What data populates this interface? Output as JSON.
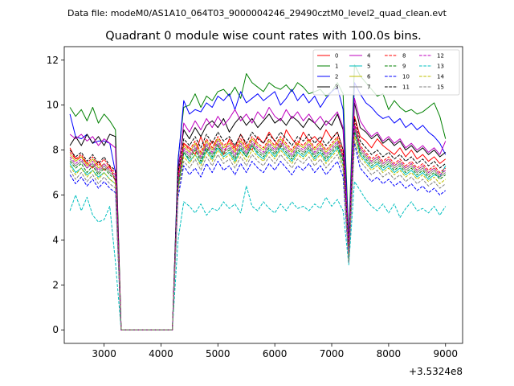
{
  "suptitle": "Data file: modeM0/AS1A10_064T03_9000004246_29490cztM0_level2_quad_clean.evt",
  "chart_data": {
    "type": "line",
    "title": "Quadrant 0 module wise count rates with 100.0s bins.",
    "xlabel": "",
    "ylabel": "",
    "x_offset_label": "+3.5324e8",
    "xlim": [
      2300,
      9300
    ],
    "ylim": [
      -0.6,
      12.6
    ],
    "x_ticks": [
      3000,
      4000,
      5000,
      6000,
      7000,
      8000,
      9000
    ],
    "x_tick_labels": [
      "3000",
      "4000",
      "5000",
      "6000",
      "7000",
      "8000",
      "9000"
    ],
    "y_ticks": [
      0,
      2,
      4,
      6,
      8,
      10,
      12
    ],
    "y_tick_labels": [
      "0",
      "2",
      "4",
      "6",
      "8",
      "10",
      "12"
    ],
    "grid": false,
    "legend_position": "top-right",
    "x": [
      2400,
      2500,
      2600,
      2700,
      2800,
      2900,
      3000,
      3100,
      3200,
      3300,
      3400,
      3500,
      3600,
      3700,
      3800,
      3900,
      4000,
      4100,
      4200,
      4300,
      4400,
      4500,
      4600,
      4700,
      4800,
      4900,
      5000,
      5100,
      5200,
      5300,
      5400,
      5500,
      5600,
      5700,
      5800,
      5900,
      6000,
      6100,
      6200,
      6300,
      6400,
      6500,
      6600,
      6700,
      6800,
      6900,
      7000,
      7100,
      7200,
      7300,
      7400,
      7500,
      7600,
      7700,
      7800,
      7900,
      8000,
      8100,
      8200,
      8300,
      8400,
      8500,
      8600,
      8700,
      8800,
      8900,
      9000
    ],
    "series": [
      {
        "name": "0",
        "color": "#ff0000",
        "dash": "solid",
        "values": [
          8.1,
          7.6,
          7.7,
          7.4,
          7.2,
          7.5,
          7.1,
          7.3,
          6.6,
          0,
          0,
          0,
          0,
          0,
          0,
          0,
          0,
          0,
          0,
          6.7,
          8.3,
          8.1,
          7.8,
          8.6,
          7.9,
          8.4,
          8.2,
          7.8,
          8.5,
          8.1,
          8.7,
          8.2,
          8.0,
          8.6,
          8.3,
          8.8,
          8.4,
          8.1,
          8.9,
          8.5,
          8.2,
          8.8,
          8.4,
          8.6,
          8.3,
          8.9,
          8.5,
          8.8,
          8.0,
          3.6,
          9.5,
          8.6,
          8.4,
          8.1,
          8.5,
          8.2,
          8.0,
          7.8,
          8.1,
          7.7,
          8.0,
          7.6,
          7.8,
          7.5,
          7.7,
          7.4,
          7.6
        ]
      },
      {
        "name": "1",
        "color": "#008000",
        "dash": "solid",
        "values": [
          9.9,
          9.5,
          9.8,
          9.3,
          9.9,
          9.2,
          9.6,
          9.3,
          8.9,
          0,
          0,
          0,
          0,
          0,
          0,
          0,
          0,
          0,
          0,
          7.6,
          9.9,
          10.0,
          10.5,
          9.9,
          10.4,
          10.2,
          10.6,
          10.7,
          10.4,
          10.8,
          10.3,
          11.4,
          11.0,
          10.8,
          10.6,
          11.0,
          10.8,
          10.7,
          10.9,
          10.6,
          11.0,
          10.8,
          10.5,
          10.6,
          10.7,
          10.4,
          10.6,
          11.0,
          10.5,
          4.1,
          11.8,
          11.3,
          11.0,
          10.7,
          10.4,
          10.5,
          9.8,
          10.2,
          9.9,
          9.7,
          9.8,
          9.6,
          9.7,
          9.9,
          10.1,
          9.5,
          8.5
        ]
      },
      {
        "name": "2",
        "color": "#0000ff",
        "dash": "solid",
        "values": [
          9.6,
          8.6,
          8.5,
          8.7,
          8.3,
          8.4,
          8.4,
          8.3,
          7.0,
          0,
          0,
          0,
          0,
          0,
          0,
          0,
          0,
          0,
          0,
          7.5,
          10.2,
          9.6,
          9.8,
          9.7,
          10.1,
          9.9,
          10.4,
          10.2,
          10.5,
          9.8,
          10.6,
          10.1,
          10.3,
          10.5,
          10.2,
          10.4,
          10.6,
          10.0,
          10.3,
          10.7,
          10.2,
          10.5,
          10.1,
          10.4,
          9.9,
          10.3,
          10.6,
          10.8,
          9.8,
          3.8,
          11.0,
          10.5,
          10.1,
          9.9,
          9.6,
          9.4,
          9.5,
          9.2,
          9.4,
          9.0,
          9.2,
          8.9,
          9.1,
          8.8,
          8.6,
          8.3,
          7.8
        ]
      },
      {
        "name": "3",
        "color": "#000000",
        "dash": "solid",
        "values": [
          8.2,
          8.6,
          8.2,
          8.7,
          8.3,
          8.6,
          8.2,
          8.7,
          8.6,
          0,
          0,
          0,
          0,
          0,
          0,
          0,
          0,
          0,
          0,
          7.2,
          8.9,
          8.5,
          9.0,
          8.6,
          9.1,
          9.3,
          9.0,
          9.4,
          8.8,
          9.2,
          9.5,
          9.1,
          9.4,
          9.0,
          9.3,
          9.6,
          9.2,
          9.4,
          9.1,
          9.5,
          9.3,
          9.0,
          9.4,
          9.2,
          8.9,
          9.3,
          9.1,
          9.6,
          8.9,
          3.5,
          10.1,
          9.0,
          8.8,
          8.5,
          8.7,
          8.3,
          8.5,
          8.2,
          8.4,
          8.0,
          8.2,
          7.9,
          8.1,
          7.8,
          8.0,
          7.7,
          7.9
        ]
      },
      {
        "name": "4",
        "color": "#bf00bf",
        "dash": "solid",
        "values": [
          8.7,
          8.5,
          8.7,
          8.4,
          8.6,
          8.2,
          8.5,
          8.3,
          8.1,
          0,
          0,
          0,
          0,
          0,
          0,
          0,
          0,
          0,
          0,
          7.0,
          9.2,
          8.8,
          9.3,
          8.9,
          9.4,
          9.0,
          9.5,
          9.1,
          9.4,
          9.8,
          9.3,
          9.6,
          9.2,
          9.7,
          9.4,
          9.9,
          9.5,
          9.3,
          9.8,
          9.4,
          9.7,
          9.3,
          9.6,
          9.2,
          9.5,
          9.1,
          9.4,
          9.7,
          9.0,
          3.7,
          10.3,
          9.3,
          8.9,
          8.6,
          8.8,
          8.4,
          8.6,
          8.3,
          8.5,
          8.1,
          8.3,
          8.0,
          8.2,
          7.9,
          8.1,
          7.8,
          8.4
        ]
      },
      {
        "name": "5",
        "color": "#00bfbf",
        "dash": "solid",
        "values": [
          7.4,
          7.0,
          7.2,
          6.9,
          7.1,
          6.8,
          7.0,
          6.7,
          6.5,
          0,
          0,
          0,
          0,
          0,
          0,
          0,
          0,
          0,
          0,
          6.3,
          7.9,
          7.5,
          7.8,
          7.4,
          8.0,
          7.6,
          8.1,
          7.7,
          7.9,
          7.5,
          8.0,
          7.7,
          8.2,
          7.8,
          7.6,
          8.0,
          7.7,
          8.1,
          7.8,
          7.5,
          7.9,
          7.7,
          8.0,
          7.6,
          7.9,
          7.5,
          7.8,
          8.1,
          7.3,
          3.1,
          8.9,
          7.8,
          7.5,
          7.2,
          7.4,
          7.1,
          7.3,
          7.0,
          7.2,
          6.9,
          7.1,
          6.8,
          7.0,
          6.7,
          6.9,
          6.8,
          7.3
        ]
      },
      {
        "name": "6",
        "color": "#bfbf00",
        "dash": "solid",
        "values": [
          7.8,
          7.5,
          7.7,
          7.3,
          7.6,
          7.2,
          7.4,
          7.1,
          6.9,
          0,
          0,
          0,
          0,
          0,
          0,
          0,
          0,
          0,
          0,
          6.6,
          8.2,
          7.9,
          8.3,
          7.8,
          8.4,
          8.0,
          8.5,
          8.1,
          8.3,
          7.9,
          8.4,
          8.0,
          8.5,
          8.2,
          8.0,
          8.4,
          8.1,
          8.5,
          8.2,
          7.9,
          8.3,
          8.1,
          8.4,
          8.0,
          8.3,
          7.9,
          8.2,
          8.5,
          7.7,
          3.3,
          9.1,
          8.1,
          7.8,
          7.5,
          7.7,
          7.4,
          7.6,
          7.3,
          7.5,
          7.2,
          7.4,
          7.1,
          7.3,
          7.0,
          7.2,
          6.9,
          7.1
        ]
      },
      {
        "name": "7",
        "color": "#808080",
        "dash": "solid",
        "values": [
          7.6,
          7.3,
          7.5,
          7.2,
          7.4,
          7.0,
          7.3,
          7.0,
          6.8,
          0,
          0,
          0,
          0,
          0,
          0,
          0,
          0,
          0,
          0,
          6.5,
          8.0,
          7.7,
          8.1,
          7.6,
          8.2,
          7.8,
          8.3,
          7.9,
          8.1,
          7.7,
          8.2,
          7.8,
          8.3,
          8.0,
          7.8,
          8.2,
          7.9,
          8.3,
          8.0,
          7.7,
          8.1,
          7.9,
          8.2,
          7.8,
          8.1,
          7.7,
          8.0,
          8.3,
          7.6,
          3.2,
          9.0,
          8.0,
          7.7,
          7.4,
          7.6,
          7.3,
          7.5,
          7.2,
          7.4,
          7.1,
          7.3,
          7.0,
          7.2,
          6.9,
          7.1,
          6.8,
          7.0
        ]
      },
      {
        "name": "8",
        "color": "#ff0000",
        "dash": "dashed",
        "values": [
          7.9,
          7.6,
          7.8,
          7.4,
          7.7,
          7.3,
          7.6,
          7.2,
          7.0,
          0,
          0,
          0,
          0,
          0,
          0,
          0,
          0,
          0,
          0,
          6.8,
          8.3,
          8.0,
          8.4,
          7.9,
          8.5,
          8.1,
          8.6,
          8.2,
          8.4,
          8.0,
          8.5,
          8.1,
          8.6,
          8.3,
          8.1,
          8.5,
          8.2,
          8.6,
          8.3,
          8.0,
          8.4,
          8.2,
          8.5,
          8.1,
          8.4,
          8.0,
          8.3,
          8.6,
          7.8,
          3.4,
          9.2,
          8.2,
          7.9,
          7.6,
          7.8,
          7.5,
          7.7,
          7.4,
          7.6,
          7.3,
          7.5,
          7.2,
          7.4,
          7.1,
          7.3,
          7.0,
          7.2
        ]
      },
      {
        "name": "9",
        "color": "#008000",
        "dash": "dashed",
        "values": [
          7.5,
          7.2,
          7.4,
          7.0,
          7.3,
          6.9,
          7.2,
          6.9,
          6.7,
          0,
          0,
          0,
          0,
          0,
          0,
          0,
          0,
          0,
          0,
          6.4,
          7.9,
          7.6,
          8.0,
          7.5,
          8.1,
          7.7,
          8.2,
          7.8,
          8.0,
          7.6,
          8.1,
          7.7,
          8.2,
          7.9,
          7.7,
          8.1,
          7.8,
          8.2,
          7.9,
          7.6,
          8.0,
          7.8,
          8.1,
          7.7,
          8.0,
          7.6,
          7.9,
          8.2,
          7.5,
          3.2,
          8.8,
          7.9,
          7.6,
          7.3,
          7.5,
          7.2,
          7.4,
          7.1,
          7.3,
          7.0,
          7.2,
          6.9,
          7.1,
          6.8,
          7.0,
          6.7,
          6.9
        ]
      },
      {
        "name": "10",
        "color": "#0000ff",
        "dash": "dashed",
        "values": [
          6.9,
          6.5,
          6.8,
          6.4,
          6.7,
          6.3,
          6.6,
          6.3,
          6.1,
          0,
          0,
          0,
          0,
          0,
          0,
          0,
          0,
          0,
          0,
          5.9,
          7.3,
          6.9,
          7.2,
          6.8,
          7.4,
          7.0,
          7.5,
          7.1,
          7.3,
          6.9,
          7.4,
          7.0,
          7.5,
          7.2,
          7.0,
          7.4,
          7.1,
          7.5,
          7.2,
          6.9,
          7.3,
          7.1,
          7.4,
          7.0,
          7.3,
          6.9,
          7.2,
          7.5,
          6.8,
          3.0,
          8.3,
          7.2,
          6.9,
          6.6,
          6.8,
          6.5,
          6.7,
          6.4,
          6.6,
          6.3,
          6.5,
          6.2,
          6.4,
          6.1,
          6.3,
          6.0,
          6.2
        ]
      },
      {
        "name": "11",
        "color": "#000000",
        "dash": "dashed",
        "values": [
          8.0,
          7.7,
          7.9,
          7.5,
          7.8,
          7.4,
          7.7,
          7.3,
          7.1,
          0,
          0,
          0,
          0,
          0,
          0,
          0,
          0,
          0,
          0,
          7.0,
          8.5,
          8.2,
          8.6,
          8.1,
          8.7,
          8.3,
          8.8,
          8.4,
          8.6,
          8.2,
          8.7,
          8.3,
          8.8,
          8.5,
          8.3,
          8.7,
          8.4,
          8.8,
          8.5,
          8.2,
          8.6,
          8.4,
          8.7,
          8.3,
          8.6,
          8.2,
          8.5,
          8.8,
          8.0,
          3.5,
          9.4,
          8.4,
          8.1,
          7.8,
          8.0,
          7.7,
          7.9,
          7.6,
          7.8,
          7.5,
          7.7,
          7.4,
          7.6,
          7.3,
          7.5,
          7.2,
          7.4
        ]
      },
      {
        "name": "12",
        "color": "#bf00bf",
        "dash": "dashed",
        "values": [
          7.7,
          7.4,
          7.6,
          7.2,
          7.5,
          7.1,
          7.4,
          7.1,
          6.9,
          0,
          0,
          0,
          0,
          0,
          0,
          0,
          0,
          0,
          0,
          6.6,
          8.1,
          7.8,
          8.2,
          7.7,
          8.3,
          7.9,
          8.4,
          8.0,
          8.2,
          7.8,
          8.3,
          7.9,
          8.4,
          8.1,
          7.9,
          8.3,
          8.0,
          8.4,
          8.1,
          7.8,
          8.2,
          8.0,
          8.3,
          7.9,
          8.2,
          7.8,
          8.1,
          8.4,
          7.7,
          3.3,
          9.1,
          8.1,
          7.8,
          7.5,
          7.7,
          7.4,
          7.6,
          7.3,
          7.5,
          7.2,
          7.4,
          7.1,
          7.3,
          7.0,
          7.2,
          6.9,
          7.1
        ]
      },
      {
        "name": "13",
        "color": "#00bfbf",
        "dash": "dashed",
        "values": [
          5.3,
          6.0,
          5.3,
          5.9,
          5.1,
          4.8,
          4.9,
          5.5,
          3.0,
          0,
          0,
          0,
          0,
          0,
          0,
          0,
          0,
          0,
          0,
          4.0,
          5.7,
          5.5,
          5.2,
          5.6,
          5.1,
          5.4,
          5.3,
          5.7,
          5.4,
          5.6,
          5.2,
          6.4,
          5.5,
          5.3,
          5.7,
          5.4,
          5.2,
          5.6,
          5.3,
          5.7,
          5.4,
          5.5,
          5.3,
          5.6,
          5.4,
          5.9,
          5.5,
          5.8,
          5.3,
          2.9,
          6.6,
          6.2,
          5.8,
          5.5,
          5.3,
          5.6,
          5.2,
          5.6,
          5.0,
          5.4,
          5.7,
          5.3,
          5.4,
          5.2,
          5.5,
          5.1,
          5.5
        ]
      },
      {
        "name": "14",
        "color": "#bfbf00",
        "dash": "dashed",
        "values": [
          7.3,
          6.9,
          7.2,
          6.8,
          7.1,
          6.7,
          7.0,
          6.7,
          6.5,
          0,
          0,
          0,
          0,
          0,
          0,
          0,
          0,
          0,
          0,
          6.2,
          7.7,
          7.4,
          7.8,
          7.3,
          7.9,
          7.5,
          8.0,
          7.6,
          7.8,
          7.4,
          7.9,
          7.5,
          8.0,
          7.7,
          7.5,
          7.9,
          7.6,
          8.0,
          7.7,
          7.4,
          7.8,
          7.6,
          7.9,
          7.5,
          7.8,
          7.4,
          7.7,
          8.0,
          7.3,
          3.1,
          8.6,
          7.7,
          7.4,
          7.1,
          7.3,
          7.0,
          7.2,
          6.9,
          7.1,
          6.8,
          7.0,
          6.7,
          6.9,
          6.6,
          6.8,
          6.5,
          6.7
        ]
      },
      {
        "name": "15",
        "color": "#808080",
        "dash": "dashed",
        "values": [
          7.1,
          6.7,
          7.0,
          6.6,
          6.9,
          6.5,
          6.8,
          6.5,
          6.3,
          0,
          0,
          0,
          0,
          0,
          0,
          0,
          0,
          0,
          0,
          6.1,
          7.5,
          7.2,
          7.6,
          7.1,
          7.7,
          7.3,
          7.8,
          7.4,
          7.6,
          7.2,
          7.7,
          7.3,
          7.8,
          7.5,
          7.3,
          7.7,
          7.4,
          7.8,
          7.5,
          7.2,
          7.6,
          7.4,
          7.7,
          7.3,
          7.6,
          7.2,
          7.5,
          7.8,
          7.1,
          3.0,
          8.4,
          7.5,
          7.2,
          6.9,
          7.1,
          6.8,
          7.0,
          6.7,
          6.9,
          6.6,
          6.8,
          6.5,
          6.7,
          6.4,
          6.6,
          6.3,
          6.5
        ]
      }
    ]
  }
}
